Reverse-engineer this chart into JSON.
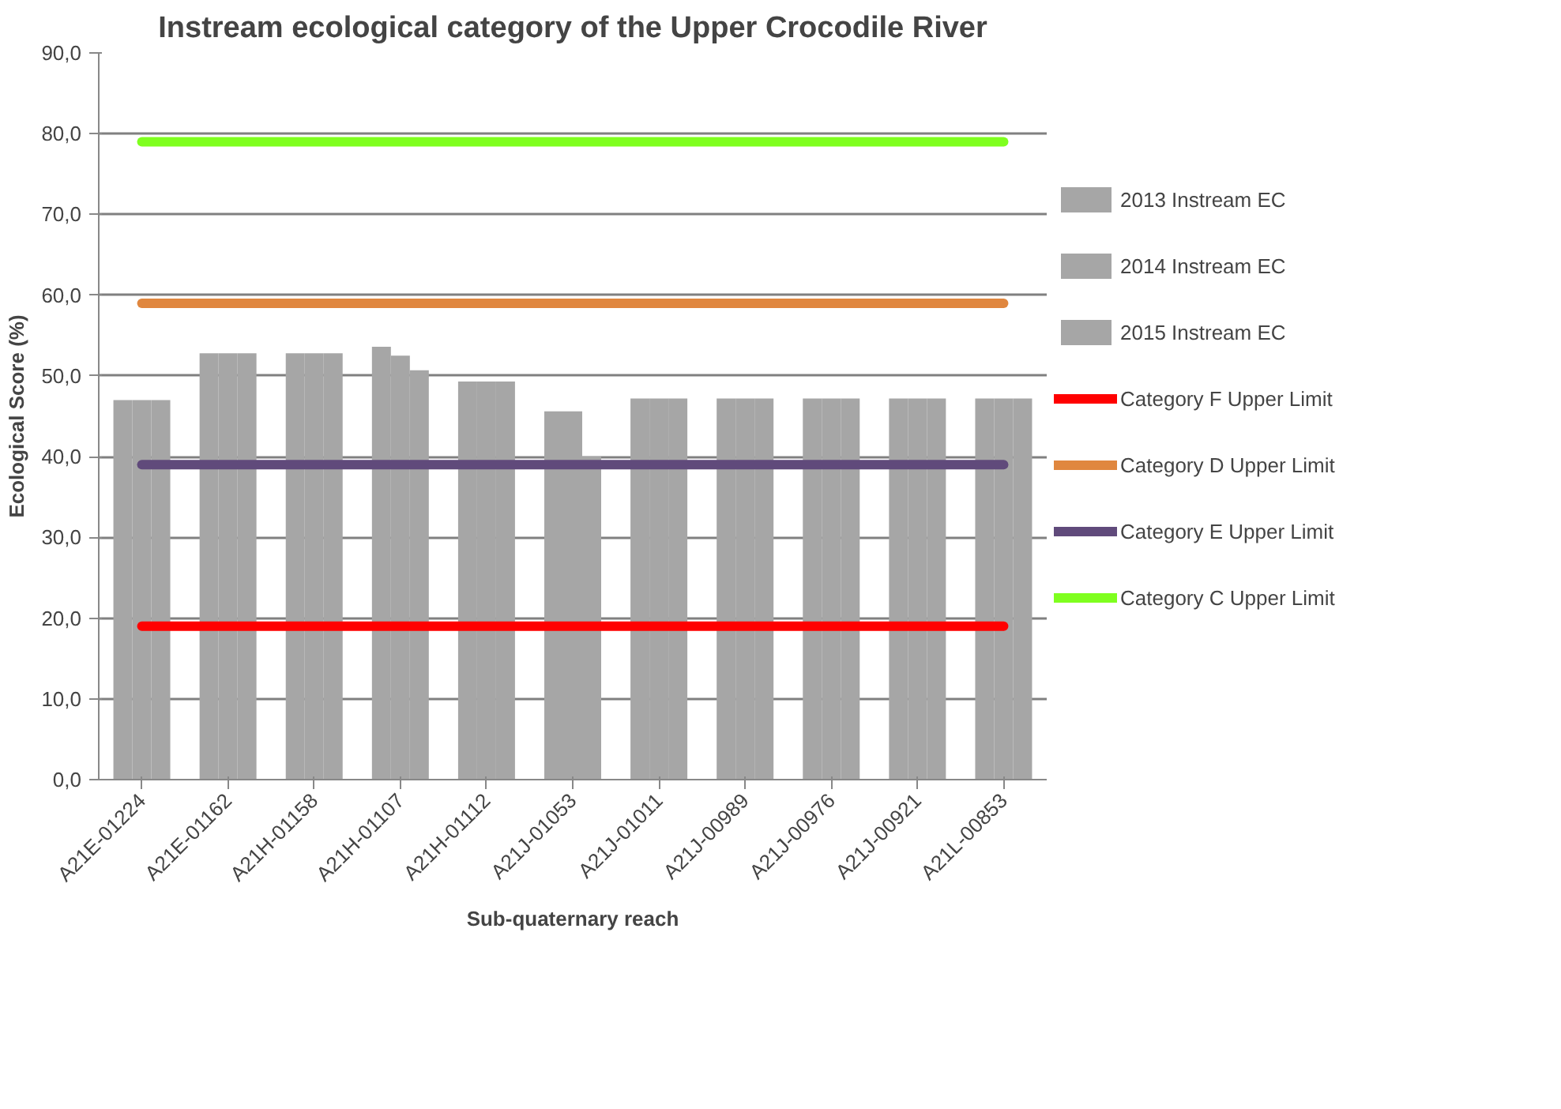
{
  "chart_data": {
    "type": "bar",
    "title": "Instream ecological category of the Upper Crocodile River",
    "xlabel": "Sub-quaternary reach",
    "ylabel": "Ecological Score (%)",
    "categories": [
      "A21E-01224",
      "A21E-01162",
      "A21H-01158",
      "A21H-01107",
      "A21H-01112",
      "A21J-01053",
      "A21J-01011",
      "A21J-00989",
      "A21J-00976",
      "A21J-00921",
      "A21L-00853"
    ],
    "series": [
      {
        "name": "2013 Instream EC",
        "color": "#a6a6a6",
        "values": [
          47.0,
          52.8,
          52.8,
          53.6,
          49.3,
          45.6,
          47.2,
          47.2,
          47.2,
          47.2,
          47.2
        ]
      },
      {
        "name": "2014 Instream EC",
        "color": "#a6a6a6",
        "values": [
          47.0,
          52.8,
          52.8,
          52.5,
          49.3,
          45.6,
          47.2,
          47.2,
          47.2,
          47.2,
          47.2
        ]
      },
      {
        "name": "2015 Instream EC",
        "color": "#a6a6a6",
        "values": [
          47.0,
          52.8,
          52.8,
          50.7,
          49.3,
          40.0,
          47.2,
          47.2,
          47.2,
          47.2,
          47.2
        ]
      },
      {
        "name": "Category F Upper Limit",
        "type": "line",
        "color": "#ff0000",
        "values": [
          19,
          19,
          19,
          19,
          19,
          19,
          19,
          19,
          19,
          19,
          19
        ]
      },
      {
        "name": "Category D Upper Limit",
        "type": "line",
        "color": "#e0873f",
        "values": [
          59,
          59,
          59,
          59,
          59,
          59,
          59,
          59,
          59,
          59,
          59
        ]
      },
      {
        "name": "Category E Upper Limit",
        "type": "line",
        "color": "#604a7b",
        "values": [
          39,
          39,
          39,
          39,
          39,
          39,
          39,
          39,
          39,
          39,
          39
        ]
      },
      {
        "name": "Category C Upper Limit",
        "type": "line",
        "color": "#7fff1f",
        "values": [
          79,
          79,
          79,
          79,
          79,
          79,
          79,
          79,
          79,
          79,
          79
        ]
      }
    ],
    "ylim": [
      0,
      90
    ],
    "yticks": [
      {
        "value": 0,
        "label": "0,0"
      },
      {
        "value": 10,
        "label": "10,0"
      },
      {
        "value": 20,
        "label": "20,0"
      },
      {
        "value": 30,
        "label": "30,0"
      },
      {
        "value": 40,
        "label": "40,0"
      },
      {
        "value": 50,
        "label": "50,0"
      },
      {
        "value": 60,
        "label": "60,0"
      },
      {
        "value": 70,
        "label": "70,0"
      },
      {
        "value": 80,
        "label": "80,0"
      },
      {
        "value": 90,
        "label": "90,0"
      }
    ],
    "grid": "y",
    "legend": "right",
    "marker": "none",
    "line_style": "solid"
  }
}
